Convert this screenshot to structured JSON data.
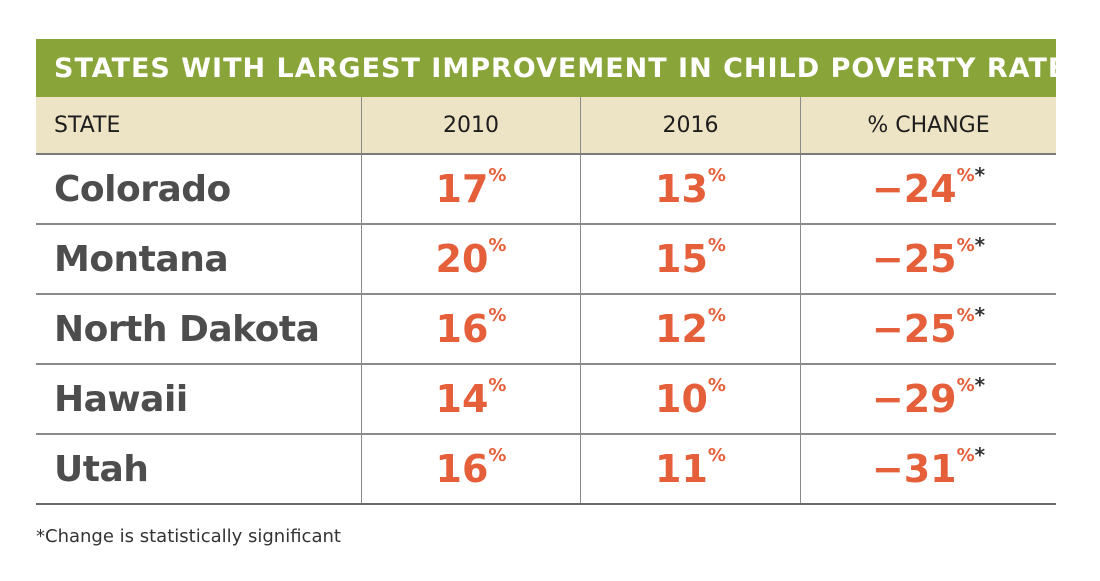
{
  "chart_data": {
    "type": "table",
    "title": "STATES WITH LARGEST IMPROVEMENT IN CHILD POVERTY RATE",
    "columns": [
      "STATE",
      "2010",
      "2016",
      "% CHANGE"
    ],
    "percent_symbol": "%",
    "significance_marker": "*",
    "rows": [
      {
        "state": "Colorado",
        "y2010": "17",
        "y2016": "13",
        "change": "−24"
      },
      {
        "state": "Montana",
        "y2010": "20",
        "y2016": "15",
        "change": "−25"
      },
      {
        "state": "North Dakota",
        "y2010": "16",
        "y2016": "12",
        "change": "−25"
      },
      {
        "state": "Hawaii",
        "y2010": "14",
        "y2016": "10",
        "change": "−29"
      },
      {
        "state": "Utah",
        "y2010": "16",
        "y2016": "11",
        "change": "−31"
      }
    ],
    "footnote": "*Change is statistically significant"
  },
  "colors": {
    "title_bar": "#89a53a",
    "header_bg": "#ede3c5",
    "value_text": "#e45f3a",
    "state_text": "#4d4d4d"
  }
}
